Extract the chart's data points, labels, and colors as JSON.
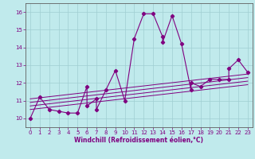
{
  "xlabel": "Windchill (Refroidissement éolien,°C)",
  "bg_color": "#c0eaec",
  "line_color": "#800080",
  "grid_color": "#a0ced2",
  "spine_color": "#606060",
  "xlim": [
    -0.5,
    23.5
  ],
  "ylim": [
    9.5,
    16.5
  ],
  "yticks": [
    10,
    11,
    12,
    13,
    14,
    15,
    16
  ],
  "xticks": [
    0,
    1,
    2,
    3,
    4,
    5,
    6,
    7,
    8,
    9,
    10,
    11,
    12,
    13,
    14,
    15,
    16,
    17,
    18,
    19,
    20,
    21,
    22,
    23
  ],
  "series_x": [
    0,
    1,
    2,
    3,
    4,
    5,
    6,
    6,
    7,
    7,
    8,
    9,
    10,
    11,
    12,
    13,
    14,
    14,
    15,
    16,
    17,
    17,
    18,
    19,
    20,
    21,
    21,
    22,
    23
  ],
  "series_y": [
    10.0,
    11.2,
    10.5,
    10.4,
    10.3,
    10.3,
    11.8,
    10.7,
    11.1,
    10.5,
    11.6,
    12.7,
    11.0,
    14.5,
    15.9,
    15.9,
    14.6,
    14.3,
    15.8,
    14.2,
    11.6,
    12.0,
    11.8,
    12.2,
    12.2,
    12.2,
    12.8,
    13.3,
    12.6
  ],
  "trend_lines": [
    {
      "x": [
        0,
        23
      ],
      "y": [
        10.5,
        11.9
      ]
    },
    {
      "x": [
        0,
        23
      ],
      "y": [
        10.7,
        12.1
      ]
    },
    {
      "x": [
        0,
        23
      ],
      "y": [
        10.9,
        12.3
      ]
    },
    {
      "x": [
        0,
        23
      ],
      "y": [
        11.1,
        12.5
      ]
    }
  ]
}
